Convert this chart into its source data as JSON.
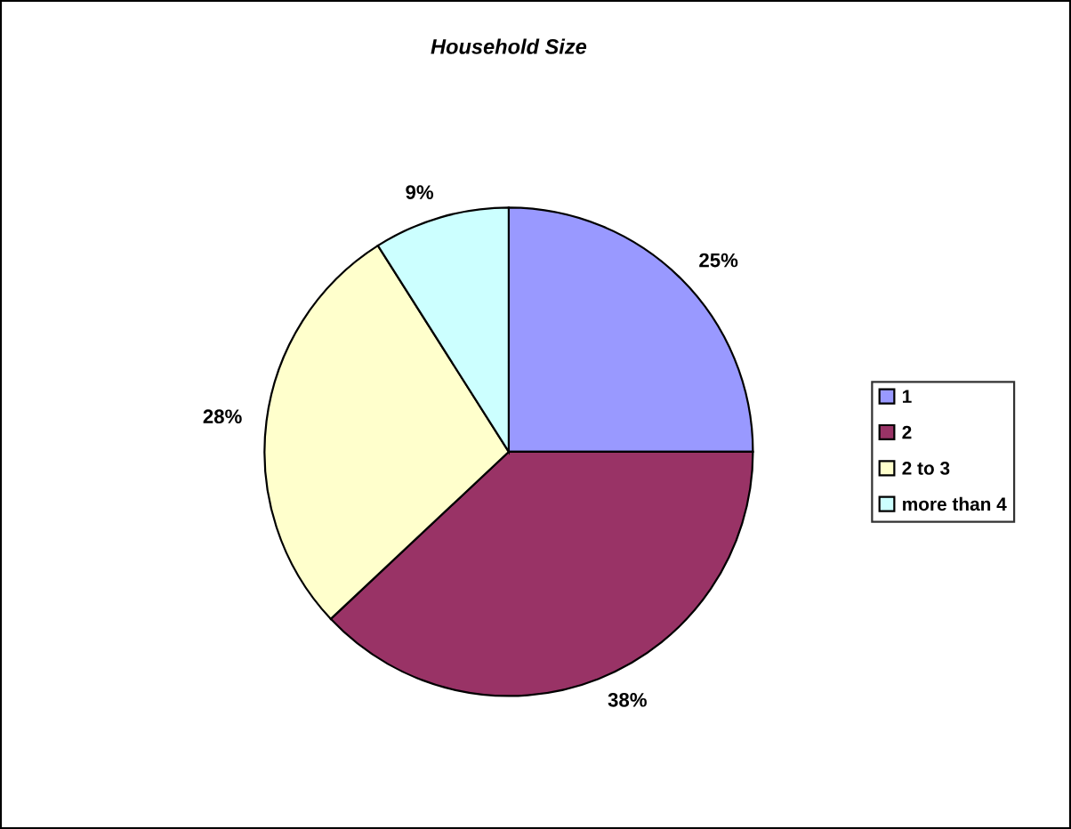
{
  "chart_data": {
    "type": "pie",
    "title": "Household Size",
    "categories": [
      "1",
      "2",
      "2 to 3",
      "more than 4"
    ],
    "values": [
      25,
      38,
      28,
      9
    ],
    "colors": [
      "#9999ff",
      "#993366",
      "#ffffcc",
      "#ccffff"
    ],
    "value_labels": [
      "25%",
      "38%",
      "28%",
      "9%"
    ],
    "legend": "right"
  }
}
